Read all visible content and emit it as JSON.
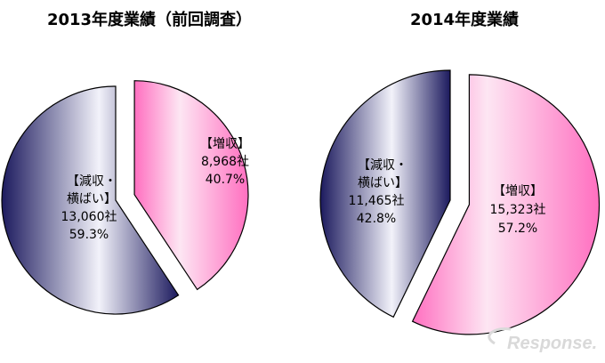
{
  "chart_data": [
    {
      "type": "pie",
      "title": "2013年度業績（前回調査）",
      "slices": [
        {
          "label_lines": [
            "【減収・",
            "横ばい】"
          ],
          "companies": "13,060社",
          "percent_label": "59.3%",
          "value": 59.3,
          "color": "#1c1a5e",
          "exploded": false
        },
        {
          "label_lines": [
            "【増収】"
          ],
          "companies": "8,968社",
          "percent_label": "40.7%",
          "value": 40.7,
          "color": "#ff6fc0",
          "exploded": true
        }
      ]
    },
    {
      "type": "pie",
      "title": "2014年度業績",
      "slices": [
        {
          "label_lines": [
            "【減収・",
            "横ばい】"
          ],
          "companies": "11,465社",
          "percent_label": "42.8%",
          "value": 42.8,
          "color": "#1c1a5e",
          "exploded": false
        },
        {
          "label_lines": [
            "【増収】"
          ],
          "companies": "15,323社",
          "percent_label": "57.2%",
          "value": 57.2,
          "color": "#ff6fc0",
          "exploded": true
        }
      ]
    }
  ],
  "watermark": {
    "text": "Response."
  }
}
